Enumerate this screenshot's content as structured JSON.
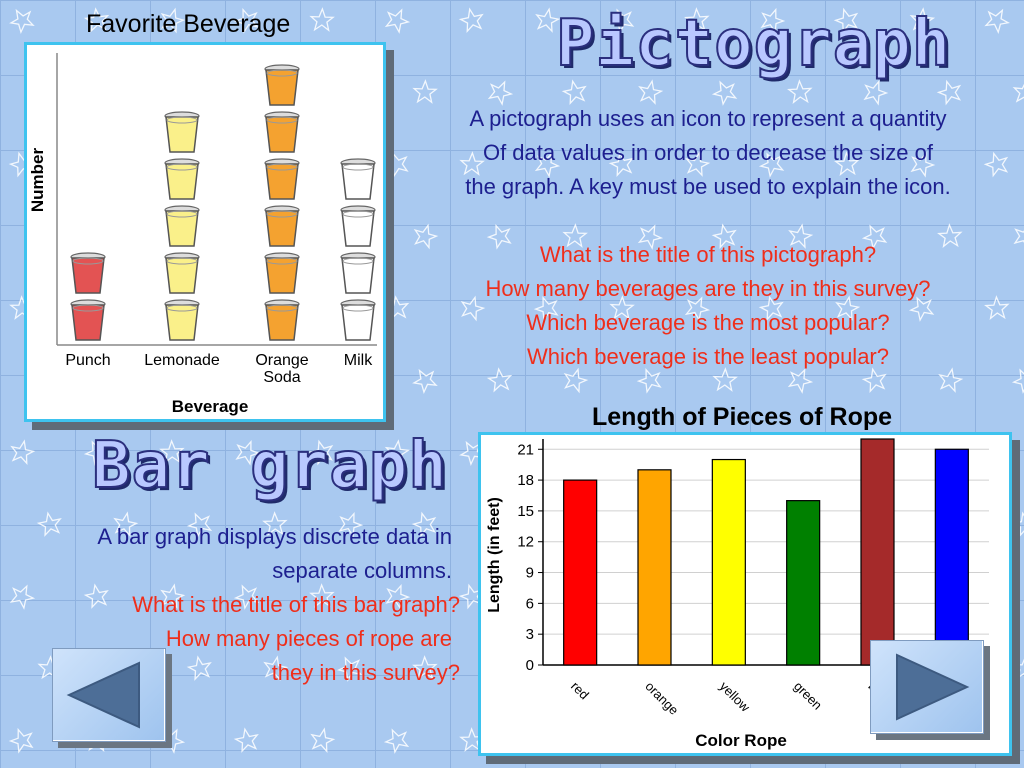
{
  "pictograph": {
    "chart_title": "Favorite Beverage",
    "chart_data": {
      "type": "bar",
      "categories": [
        "Punch",
        "Lemonade",
        "Orange Soda",
        "Milk"
      ],
      "category_lines": [
        [
          "Punch"
        ],
        [
          "Lemonade"
        ],
        [
          "Orange",
          "Soda"
        ],
        [
          "Milk"
        ]
      ],
      "values": [
        2,
        5,
        6,
        4
      ],
      "xlabel": "Beverage",
      "ylabel": "Number",
      "icon": "cup-icon",
      "colors": [
        "#e35353",
        "#faf08a",
        "#f4a230",
        "#ffffff"
      ]
    }
  },
  "pictograph_section": {
    "heading": "Pictograph",
    "description": [
      "A pictograph uses an icon to represent a quantity",
      "Of data values in order to decrease the size of",
      "the graph. A key must be used to explain the icon."
    ],
    "questions": [
      "What is the title of this pictograph?",
      "How many beverages are they in this survey?",
      "Which beverage is the most popular?",
      "Which beverage is the least popular?"
    ]
  },
  "bar_section": {
    "heading": "Bar graph",
    "description": [
      "A bar graph displays discrete data in",
      "separate columns."
    ],
    "questions": [
      "What is the title of this bar graph?",
      "How many pieces of rope are",
      "they in this survey?"
    ]
  },
  "bar_chart": {
    "title": "Length of Pieces of Rope",
    "chart_data": {
      "type": "bar",
      "categories": [
        "red",
        "orange",
        "yellow",
        "green",
        "brown",
        "blue"
      ],
      "values": [
        18,
        19,
        20,
        16,
        22,
        21
      ],
      "colors": [
        "#ff0000",
        "#ffa500",
        "#ffff00",
        "#008000",
        "#a52a2a",
        "#0000ff"
      ],
      "xlabel": "Color Rope",
      "ylabel": "Length (in feet)",
      "ylim": [
        0,
        22
      ],
      "yticks": [
        0,
        3,
        6,
        9,
        12,
        15,
        18,
        21
      ],
      "grid": true
    }
  },
  "navigation": {
    "prev_icon": "left-arrow-icon",
    "next_icon": "right-arrow-icon"
  }
}
